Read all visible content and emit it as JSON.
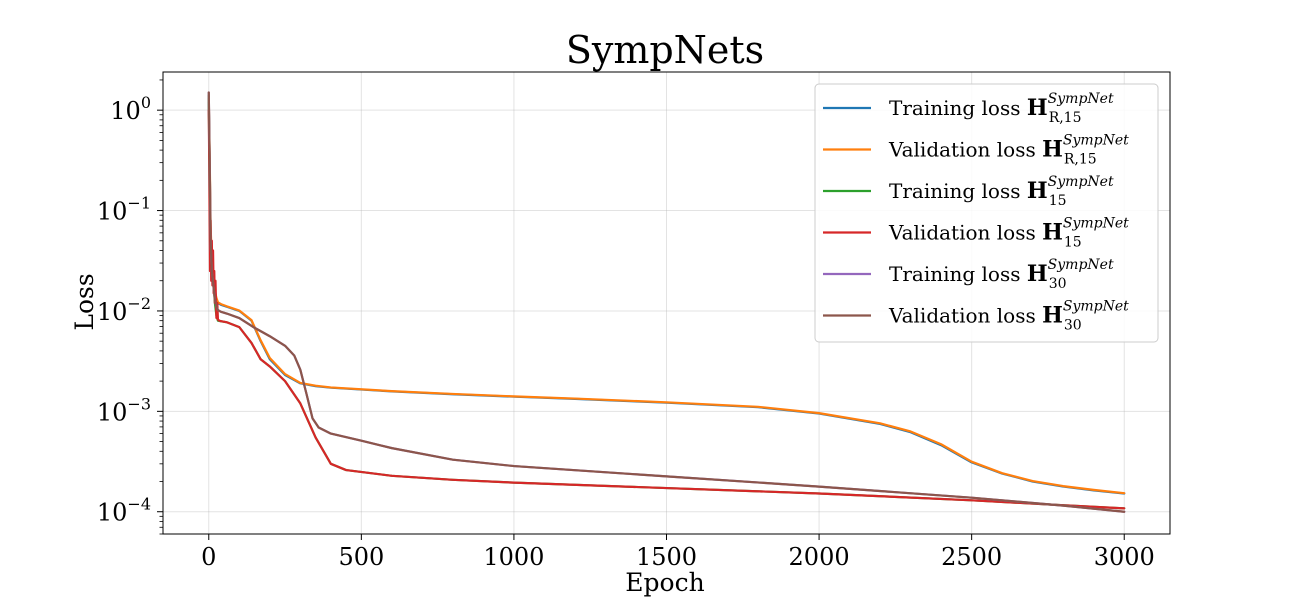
{
  "chart_data": {
    "type": "line",
    "title": "SympNets",
    "xlabel": "Epoch",
    "ylabel": "Loss",
    "xlim": [
      -150,
      3150
    ],
    "ylim": [
      6e-05,
      2.4
    ],
    "yscale": "log",
    "grid": true,
    "legend_position": "top-right",
    "x_ticks": [
      0,
      500,
      1000,
      1500,
      2000,
      2500,
      3000
    ],
    "y_ticks": [
      {
        "value": 0.0001,
        "base": "10",
        "exp": "−4"
      },
      {
        "value": 0.001,
        "base": "10",
        "exp": "−3"
      },
      {
        "value": 0.01,
        "base": "10",
        "exp": "−2"
      },
      {
        "value": 0.1,
        "base": "10",
        "exp": "−1"
      },
      {
        "value": 1,
        "base": "10",
        "exp": "0"
      }
    ],
    "series": [
      {
        "name": "Training loss H_{R,15}^{SympNet}",
        "legend": {
          "prefix": "Training loss",
          "bold": "H",
          "sub": "R,15",
          "sup": "SympNet"
        },
        "color": "#1f77b4",
        "x": [
          0,
          3,
          6,
          10,
          15,
          20,
          25,
          30,
          40,
          60,
          100,
          140,
          170,
          200,
          250,
          300,
          350,
          400,
          600,
          800,
          1000,
          1200,
          1500,
          1800,
          2000,
          2200,
          2300,
          2400,
          2500,
          2600,
          2700,
          2800,
          2900,
          3000
        ],
        "y": [
          1.2,
          0.3,
          0.06,
          0.03,
          0.02,
          0.015,
          0.013,
          0.012,
          0.0115,
          0.011,
          0.01,
          0.008,
          0.005,
          0.0033,
          0.0023,
          0.0019,
          0.00178,
          0.00172,
          0.00158,
          0.00148,
          0.0014,
          0.00133,
          0.00122,
          0.0011,
          0.00095,
          0.00075,
          0.00062,
          0.00046,
          0.00031,
          0.00024,
          0.0002,
          0.000178,
          0.000163,
          0.000152
        ]
      },
      {
        "name": "Validation loss H_{R,15}^{SympNet}",
        "legend": {
          "prefix": "Validation loss",
          "bold": "H",
          "sub": "R,15",
          "sup": "SympNet"
        },
        "color": "#ff7f0e",
        "x": [
          0,
          3,
          6,
          10,
          15,
          20,
          25,
          30,
          40,
          60,
          100,
          140,
          170,
          200,
          250,
          300,
          350,
          400,
          600,
          800,
          1000,
          1200,
          1500,
          1800,
          2000,
          2200,
          2300,
          2400,
          2500,
          2600,
          2700,
          2800,
          2900,
          3000
        ],
        "y": [
          1.3,
          0.35,
          0.07,
          0.032,
          0.021,
          0.016,
          0.0135,
          0.0122,
          0.0117,
          0.0111,
          0.0101,
          0.0081,
          0.0051,
          0.0034,
          0.00235,
          0.00192,
          0.0018,
          0.00173,
          0.00159,
          0.00149,
          0.00141,
          0.00134,
          0.00123,
          0.00111,
          0.00096,
          0.00076,
          0.00063,
          0.00047,
          0.000315,
          0.000242,
          0.000202,
          0.00018,
          0.000165,
          0.000153
        ]
      },
      {
        "name": "Training loss H_{15}^{SympNet}",
        "legend": {
          "prefix": "Training loss",
          "bold": "H",
          "sub": "15",
          "sup": "SympNet"
        },
        "color": "#2ca02c",
        "x": [
          0,
          3,
          6,
          10,
          15,
          20,
          25,
          30,
          40,
          60,
          100,
          140,
          170,
          200,
          250,
          300,
          350,
          400,
          450,
          600,
          800,
          1000,
          1500,
          2000,
          2500,
          2800,
          3000
        ],
        "y": [
          1.4,
          0.1,
          0.04,
          0.03,
          0.02,
          0.012,
          0.009,
          0.008,
          0.0079,
          0.0077,
          0.0069,
          0.0048,
          0.0033,
          0.0028,
          0.002,
          0.0012,
          0.00055,
          0.0003,
          0.00026,
          0.000228,
          0.000208,
          0.000195,
          0.000172,
          0.000152,
          0.00013,
          0.000116,
          0.000108
        ]
      },
      {
        "name": "Validation loss H_{15}^{SympNet}",
        "legend": {
          "prefix": "Validation loss",
          "bold": "H",
          "sub": "15",
          "sup": "SympNet"
        },
        "color": "#d62728",
        "x": [
          0,
          2,
          4,
          6,
          8,
          10,
          12,
          14,
          16,
          18,
          20,
          22,
          25,
          28,
          30,
          35,
          40,
          60,
          100,
          140,
          170,
          200,
          250,
          300,
          350,
          400,
          450,
          600,
          800,
          1000,
          1500,
          2000,
          2500,
          2800,
          3000
        ],
        "y": [
          1.0,
          0.2,
          0.025,
          0.08,
          0.02,
          0.05,
          0.018,
          0.04,
          0.015,
          0.025,
          0.012,
          0.02,
          0.0085,
          0.012,
          0.0082,
          0.008,
          0.0079,
          0.0077,
          0.0069,
          0.0048,
          0.0033,
          0.0028,
          0.002,
          0.0012,
          0.00055,
          0.0003,
          0.00026,
          0.000228,
          0.000208,
          0.000195,
          0.000172,
          0.000152,
          0.00013,
          0.000116,
          0.000108
        ]
      },
      {
        "name": "Training loss H_{30}^{SympNet}",
        "legend": {
          "prefix": "Training loss",
          "bold": "H",
          "sub": "30",
          "sup": "SympNet"
        },
        "color": "#9467bd",
        "x": [
          0,
          3,
          6,
          10,
          15,
          20,
          25,
          30,
          40,
          60,
          100,
          150,
          200,
          250,
          280,
          300,
          320,
          340,
          360,
          400,
          500,
          600,
          800,
          1000,
          1500,
          2000,
          2500,
          2800,
          3000
        ],
        "y": [
          1.5,
          0.3,
          0.05,
          0.025,
          0.018,
          0.013,
          0.011,
          0.0102,
          0.0098,
          0.0094,
          0.0085,
          0.0068,
          0.0056,
          0.0045,
          0.0036,
          0.0026,
          0.0015,
          0.00085,
          0.00069,
          0.0006,
          0.00051,
          0.00043,
          0.00033,
          0.000285,
          0.000225,
          0.000178,
          0.000138,
          0.000115,
          0.0001
        ]
      },
      {
        "name": "Validation loss H_{30}^{SympNet}",
        "legend": {
          "prefix": "Validation loss",
          "bold": "H",
          "sub": "30",
          "sup": "SympNet"
        },
        "color": "#8c564b",
        "x": [
          0,
          3,
          6,
          10,
          15,
          20,
          25,
          30,
          40,
          60,
          100,
          150,
          200,
          250,
          280,
          300,
          320,
          340,
          360,
          400,
          500,
          600,
          800,
          1000,
          1500,
          2000,
          2500,
          2800,
          3000
        ],
        "y": [
          1.5,
          0.3,
          0.05,
          0.025,
          0.018,
          0.013,
          0.011,
          0.0102,
          0.0098,
          0.0094,
          0.0085,
          0.0068,
          0.0056,
          0.0045,
          0.0036,
          0.0026,
          0.0015,
          0.00085,
          0.00069,
          0.0006,
          0.00051,
          0.00043,
          0.00033,
          0.000285,
          0.000225,
          0.000178,
          0.000138,
          0.000115,
          0.0001
        ]
      }
    ]
  }
}
